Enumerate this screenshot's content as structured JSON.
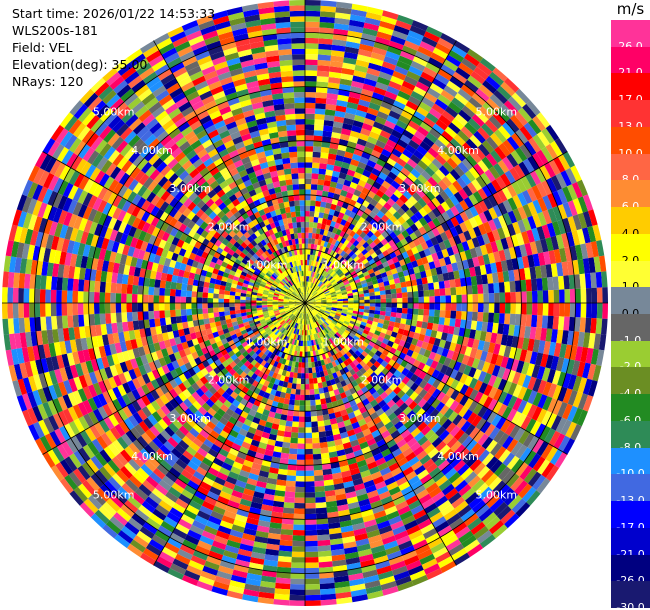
{
  "header": {
    "start_time": "Start time: 2026/01/22 14:53:33",
    "instrument": "WLS200s-181",
    "field": "Field: VEL",
    "elevation": "Elevation(deg): 35.00",
    "nrays": "NRays: 120"
  },
  "chart_data": {
    "type": "heatmap",
    "projection": "ppi-polar",
    "field": "VEL",
    "units": "m/s",
    "nrays": 120,
    "elevation_deg": 35.0,
    "range_rings_km": [
      1,
      2,
      3,
      4,
      5
    ],
    "range_ring_labels": [
      "1.00km",
      "2.00km",
      "3.00km",
      "4.00km",
      "5.00km"
    ],
    "colorbar": {
      "unit_label": "m/s",
      "bins": [
        {
          "label": "26.0",
          "color": "#ff3399"
        },
        {
          "label": "21.0",
          "color": "#ff0066"
        },
        {
          "label": "17.0",
          "color": "#ff0000"
        },
        {
          "label": "13.0",
          "color": "#ff3333"
        },
        {
          "label": "10.0",
          "color": "#ff4d00"
        },
        {
          "label": "8.0",
          "color": "#ff6644"
        },
        {
          "label": "6.0",
          "color": "#ff8c33"
        },
        {
          "label": "4.0",
          "color": "#ffcc00"
        },
        {
          "label": "2.0",
          "color": "#ffff00"
        },
        {
          "label": "1.0",
          "color": "#ffff33"
        },
        {
          "label": "0.0",
          "color": "#778899"
        },
        {
          "label": "-1.0",
          "color": "#666666"
        },
        {
          "label": "-2.0",
          "color": "#9acd32"
        },
        {
          "label": "-4.0",
          "color": "#6b8e23"
        },
        {
          "label": "-6.0",
          "color": "#228b22"
        },
        {
          "label": "-8.0",
          "color": "#2e8b57"
        },
        {
          "label": "-10.0",
          "color": "#1e90ff"
        },
        {
          "label": "-13.0",
          "color": "#4169e1"
        },
        {
          "label": "-17.0",
          "color": "#0000ff"
        },
        {
          "label": "-21.0",
          "color": "#0000cd"
        },
        {
          "label": "-26.0",
          "color": "#000080"
        },
        {
          "label": "-30.0",
          "color": "#191970"
        }
      ]
    }
  }
}
